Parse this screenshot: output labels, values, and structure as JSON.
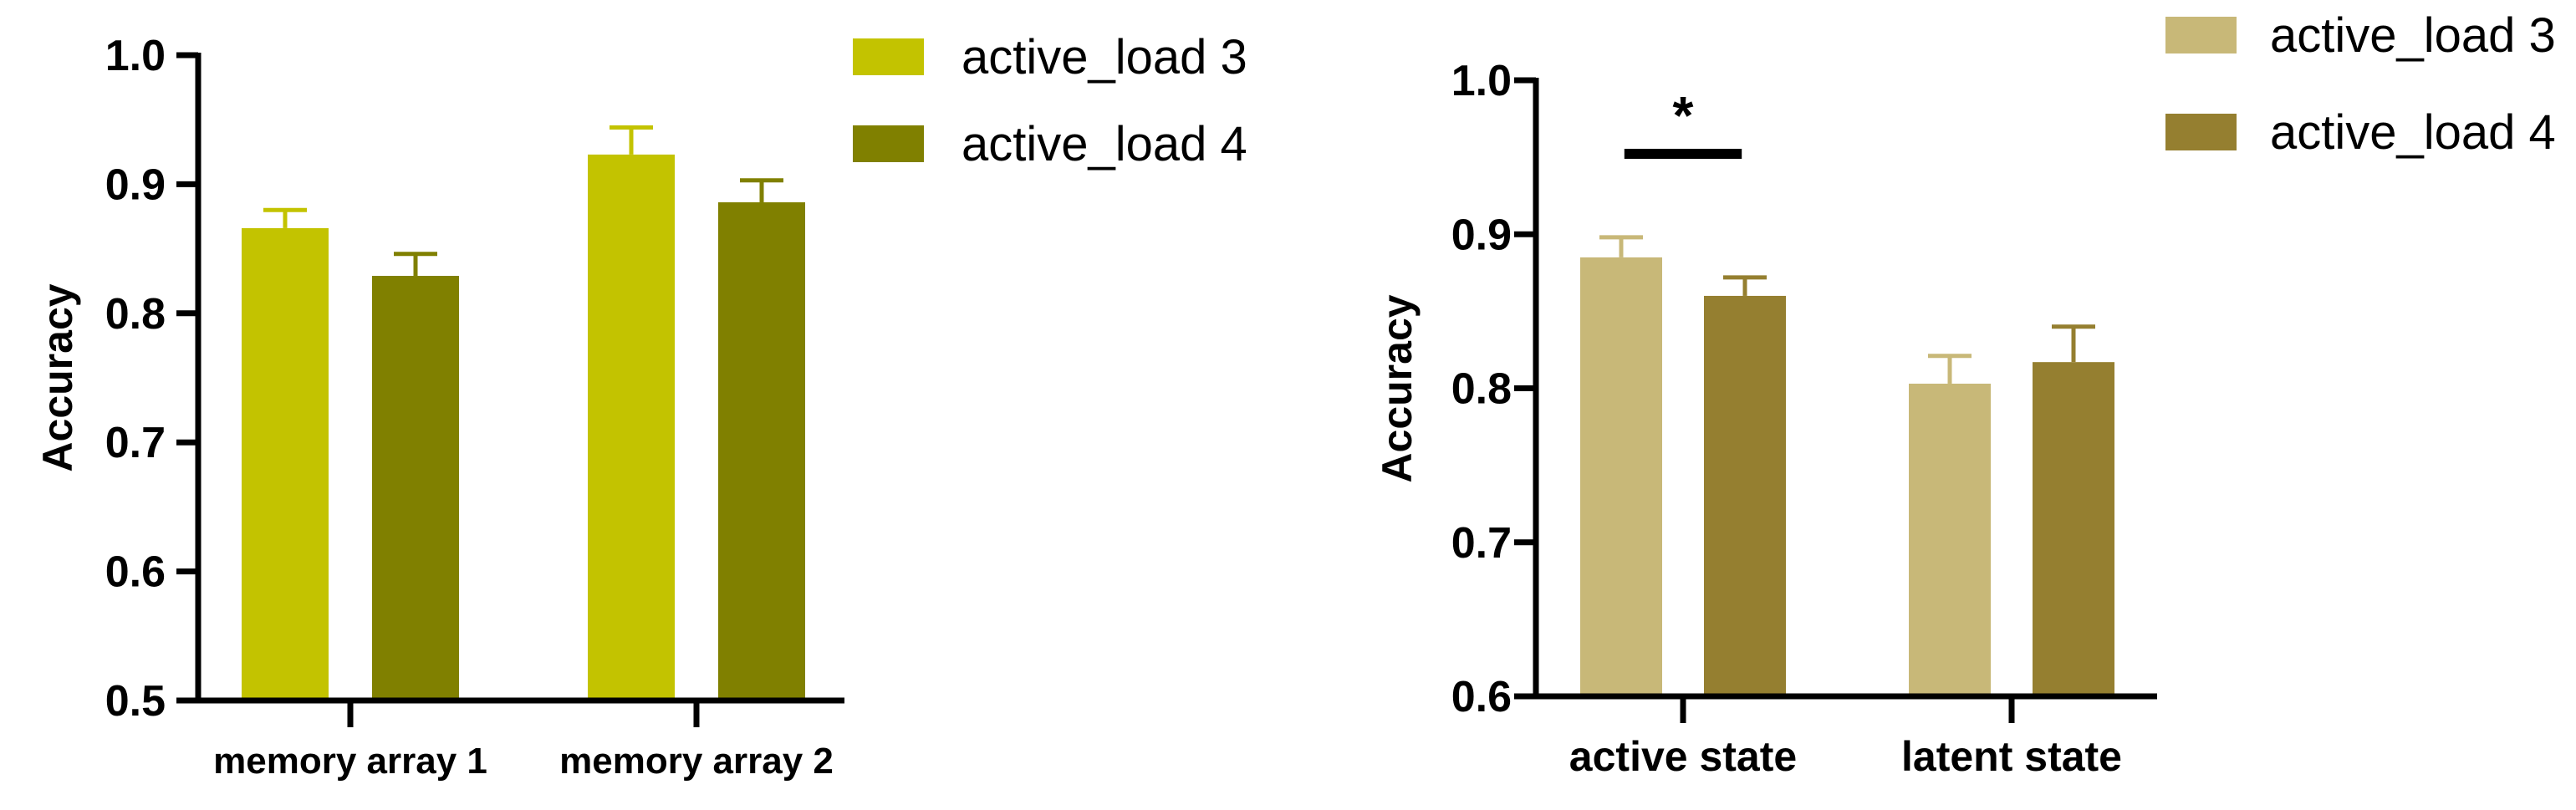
{
  "chart_data": [
    {
      "type": "bar",
      "title": "",
      "xlabel": "",
      "ylabel": "Accuracy",
      "ylim": [
        0.5,
        1.0
      ],
      "yticks": [
        0.5,
        0.6,
        0.7,
        0.8,
        0.9,
        1.0
      ],
      "ytick_labels": [
        "0.5",
        "0.6",
        "0.7",
        "0.8",
        "0.9",
        "1.0"
      ],
      "categories": [
        "memory array 1",
        "memory array 2"
      ],
      "series": [
        {
          "name": "active_load 3",
          "color": "#c3c300",
          "values": [
            0.866,
            0.923
          ],
          "errors": [
            0.014,
            0.021
          ]
        },
        {
          "name": "active_load 4",
          "color": "#808000",
          "values": [
            0.829,
            0.886
          ],
          "errors": [
            0.017,
            0.017
          ]
        }
      ],
      "legend_position": "top-right",
      "significance": []
    },
    {
      "type": "bar",
      "title": "",
      "xlabel": "",
      "ylabel": "Accuracy",
      "ylim": [
        0.6,
        1.0
      ],
      "yticks": [
        0.6,
        0.7,
        0.8,
        0.9,
        1.0
      ],
      "ytick_labels": [
        "0.6",
        "0.7",
        "0.8",
        "0.9",
        "1.0"
      ],
      "categories": [
        "active state",
        "latent state"
      ],
      "series": [
        {
          "name": "active_load 3",
          "color": "#c8b878",
          "values": [
            0.885,
            0.803
          ],
          "errors": [
            0.013,
            0.018
          ]
        },
        {
          "name": "active_load 4",
          "color": "#957f30",
          "values": [
            0.86,
            0.817
          ],
          "errors": [
            0.012,
            0.023
          ]
        }
      ],
      "legend_position": "top-right",
      "significance": [
        {
          "category": "active state",
          "label": "*"
        }
      ]
    }
  ]
}
